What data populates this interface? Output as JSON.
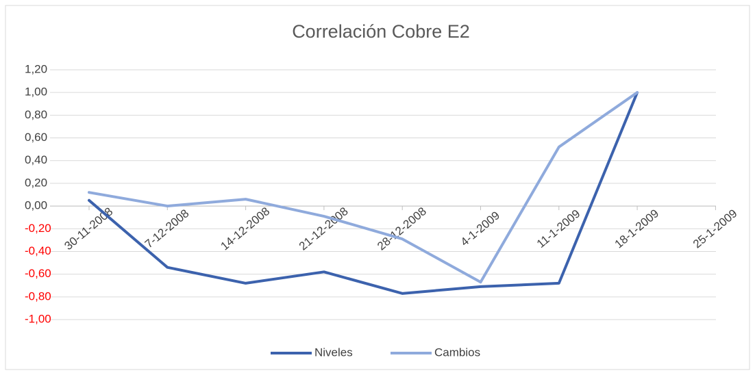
{
  "chart_data": {
    "type": "line",
    "title": "Correlación Cobre E2",
    "categories": [
      "30-11-2008",
      "7-12-2008",
      "14-12-2008",
      "21-12-2008",
      "28-12-2008",
      "4-1-2009",
      "11-1-2009",
      "18-1-2009",
      "25-1-2009"
    ],
    "series": [
      {
        "name": "Niveles",
        "color": "#3c62ad",
        "values": [
          0.05,
          -0.54,
          -0.68,
          -0.58,
          -0.77,
          -0.71,
          -0.68,
          1.0,
          null
        ]
      },
      {
        "name": "Cambios",
        "color": "#8faadc",
        "values": [
          0.12,
          0.0,
          0.06,
          -0.09,
          -0.29,
          -0.67,
          0.52,
          1.0,
          null
        ]
      }
    ],
    "ylim": [
      -1.0,
      1.2
    ],
    "yticks": [
      {
        "value": -1.0,
        "label": "-1,00"
      },
      {
        "value": -0.8,
        "label": "-0,80"
      },
      {
        "value": -0.6,
        "label": "-0,60"
      },
      {
        "value": -0.4,
        "label": "-0,40"
      },
      {
        "value": -0.2,
        "label": "-0,20"
      },
      {
        "value": 0.0,
        "label": "0,00"
      },
      {
        "value": 0.2,
        "label": "0,20"
      },
      {
        "value": 0.4,
        "label": "0,40"
      },
      {
        "value": 0.6,
        "label": "0,60"
      },
      {
        "value": 0.8,
        "label": "0,80"
      },
      {
        "value": 1.0,
        "label": "1,00"
      },
      {
        "value": 1.2,
        "label": "1,20"
      }
    ],
    "negative_tick_color": "#ff0000",
    "grid": true,
    "legend": "bottom"
  }
}
